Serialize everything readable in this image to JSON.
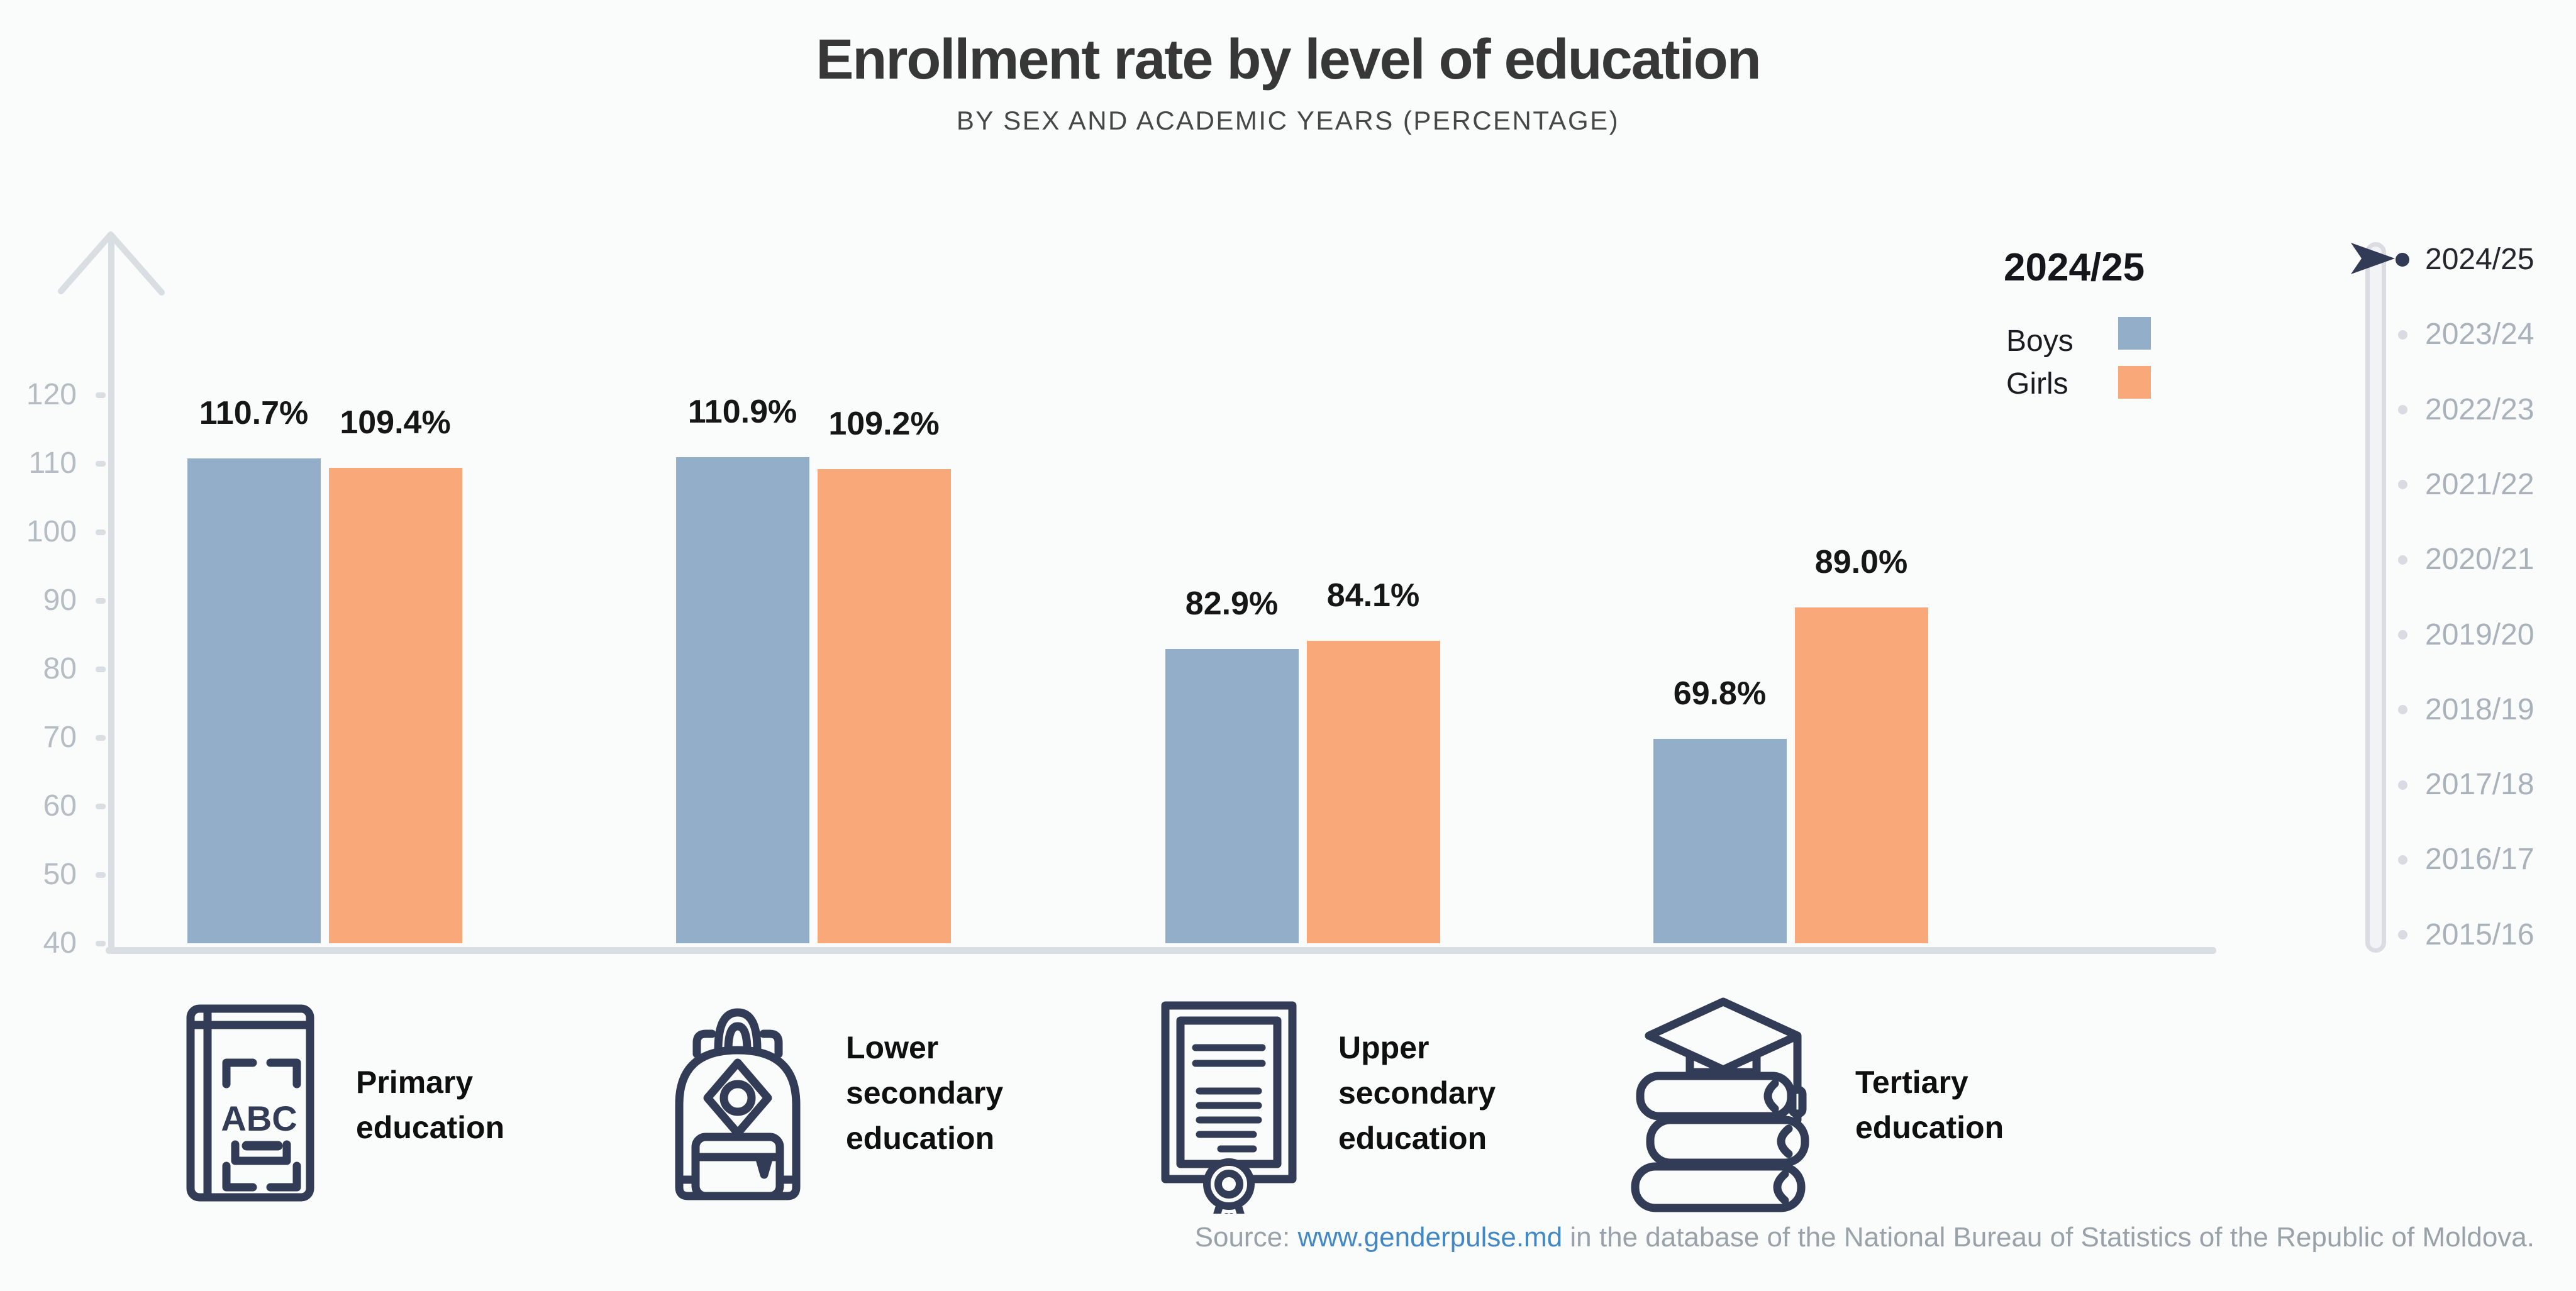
{
  "header": {
    "title": "Enrollment rate by level of education",
    "subtitle": "BY SEX AND ACADEMIC YEARS (PERCENTAGE)"
  },
  "chart_data": {
    "type": "bar",
    "title": "Enrollment rate by level of education",
    "subtitle": "BY SEX AND ACADEMIC YEARS (PERCENTAGE)",
    "categories": [
      "Primary education",
      "Lower secondary education",
      "Upper secondary education",
      "Tertiary education"
    ],
    "series": [
      {
        "name": "Boys",
        "color": "#93aec8",
        "values": [
          110.7,
          110.9,
          82.9,
          69.8
        ]
      },
      {
        "name": "Girls",
        "color": "#f9a87a",
        "values": [
          109.4,
          109.2,
          84.1,
          89.0
        ]
      }
    ],
    "value_suffix": "%",
    "ylim": [
      40,
      125
    ],
    "yticks": [
      120,
      110,
      100,
      90,
      80,
      70,
      60,
      50,
      40
    ],
    "grid": false,
    "legend_position": "right"
  },
  "legend": {
    "year": "2024/25",
    "boys_label": "Boys",
    "girls_label": "Girls"
  },
  "year_slider": {
    "years": [
      "2024/25",
      "2023/24",
      "2022/23",
      "2021/22",
      "2020/21",
      "2019/20",
      "2018/19",
      "2017/18",
      "2016/17",
      "2015/16"
    ],
    "active_index": 0
  },
  "icons": {
    "axis_arrow": "up-arrow-icon",
    "slider_cursor": "play-arrow-icon",
    "category_icons": [
      "abc-book-icon",
      "backpack-icon",
      "diploma-icon",
      "graduation-books-icon"
    ]
  },
  "colors": {
    "boys": "#93aec8",
    "girls": "#f9a87a",
    "accent_navy": "#323c56",
    "axis_gray": "#d9dee3",
    "link_blue": "#4188c5"
  },
  "footer": {
    "source_prefix": "Source: ",
    "source_link": "www.genderpulse.md",
    "source_suffix": " in the database of the National Bureau of Statistics of the Republic of Moldova."
  }
}
